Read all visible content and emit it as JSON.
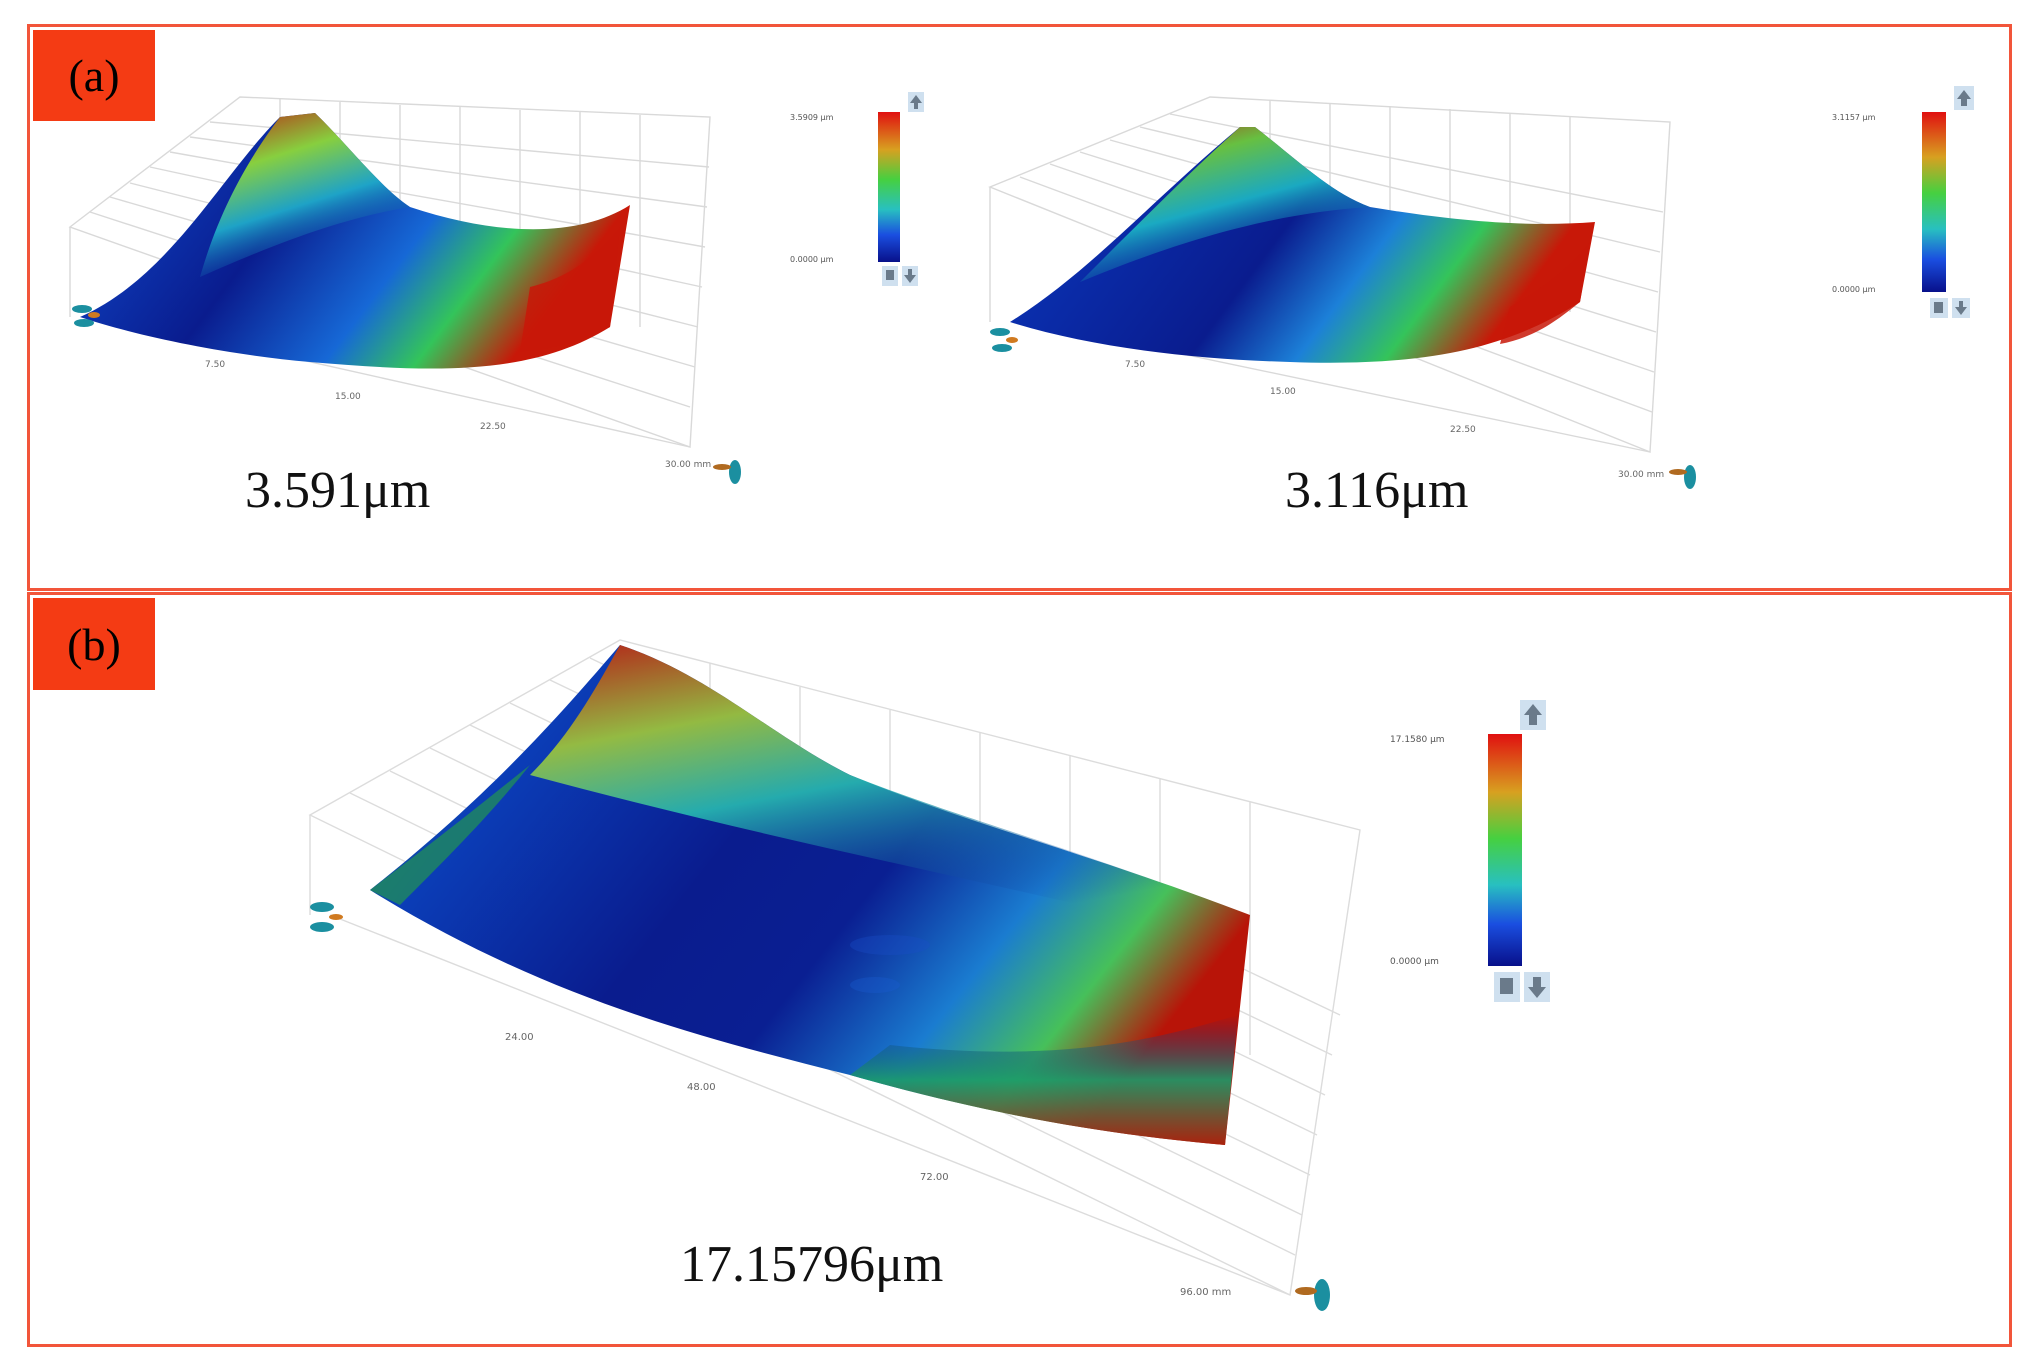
{
  "panels": [
    {
      "label": "(a)",
      "plots": [
        {
          "value_text": "3.591μm",
          "colorbar": {
            "max_label": "3.5909 μm",
            "min_label": "0.0000 μm"
          },
          "axis_ticks": [
            "7.50",
            "15.00",
            "22.50",
            "30.00 mm"
          ]
        },
        {
          "value_text": "3.116μm",
          "colorbar": {
            "max_label": "3.1157 μm",
            "min_label": "0.0000 μm"
          },
          "axis_ticks": [
            "7.50",
            "15.00",
            "22.50",
            "30.00 mm"
          ]
        }
      ]
    },
    {
      "label": "(b)",
      "plots": [
        {
          "value_text": "17.15796μm",
          "colorbar": {
            "max_label": "17.1580 μm",
            "min_label": "0.0000 μm"
          },
          "axis_ticks": [
            "24.00",
            "48.00",
            "72.00",
            "96.00 mm"
          ]
        }
      ]
    }
  ],
  "colors": {
    "frame": "#f2553a",
    "label_bg": "#f43b14",
    "surface_high": "#c81808",
    "surface_mid": "#2fc256",
    "surface_low": "#0a1c8e"
  }
}
